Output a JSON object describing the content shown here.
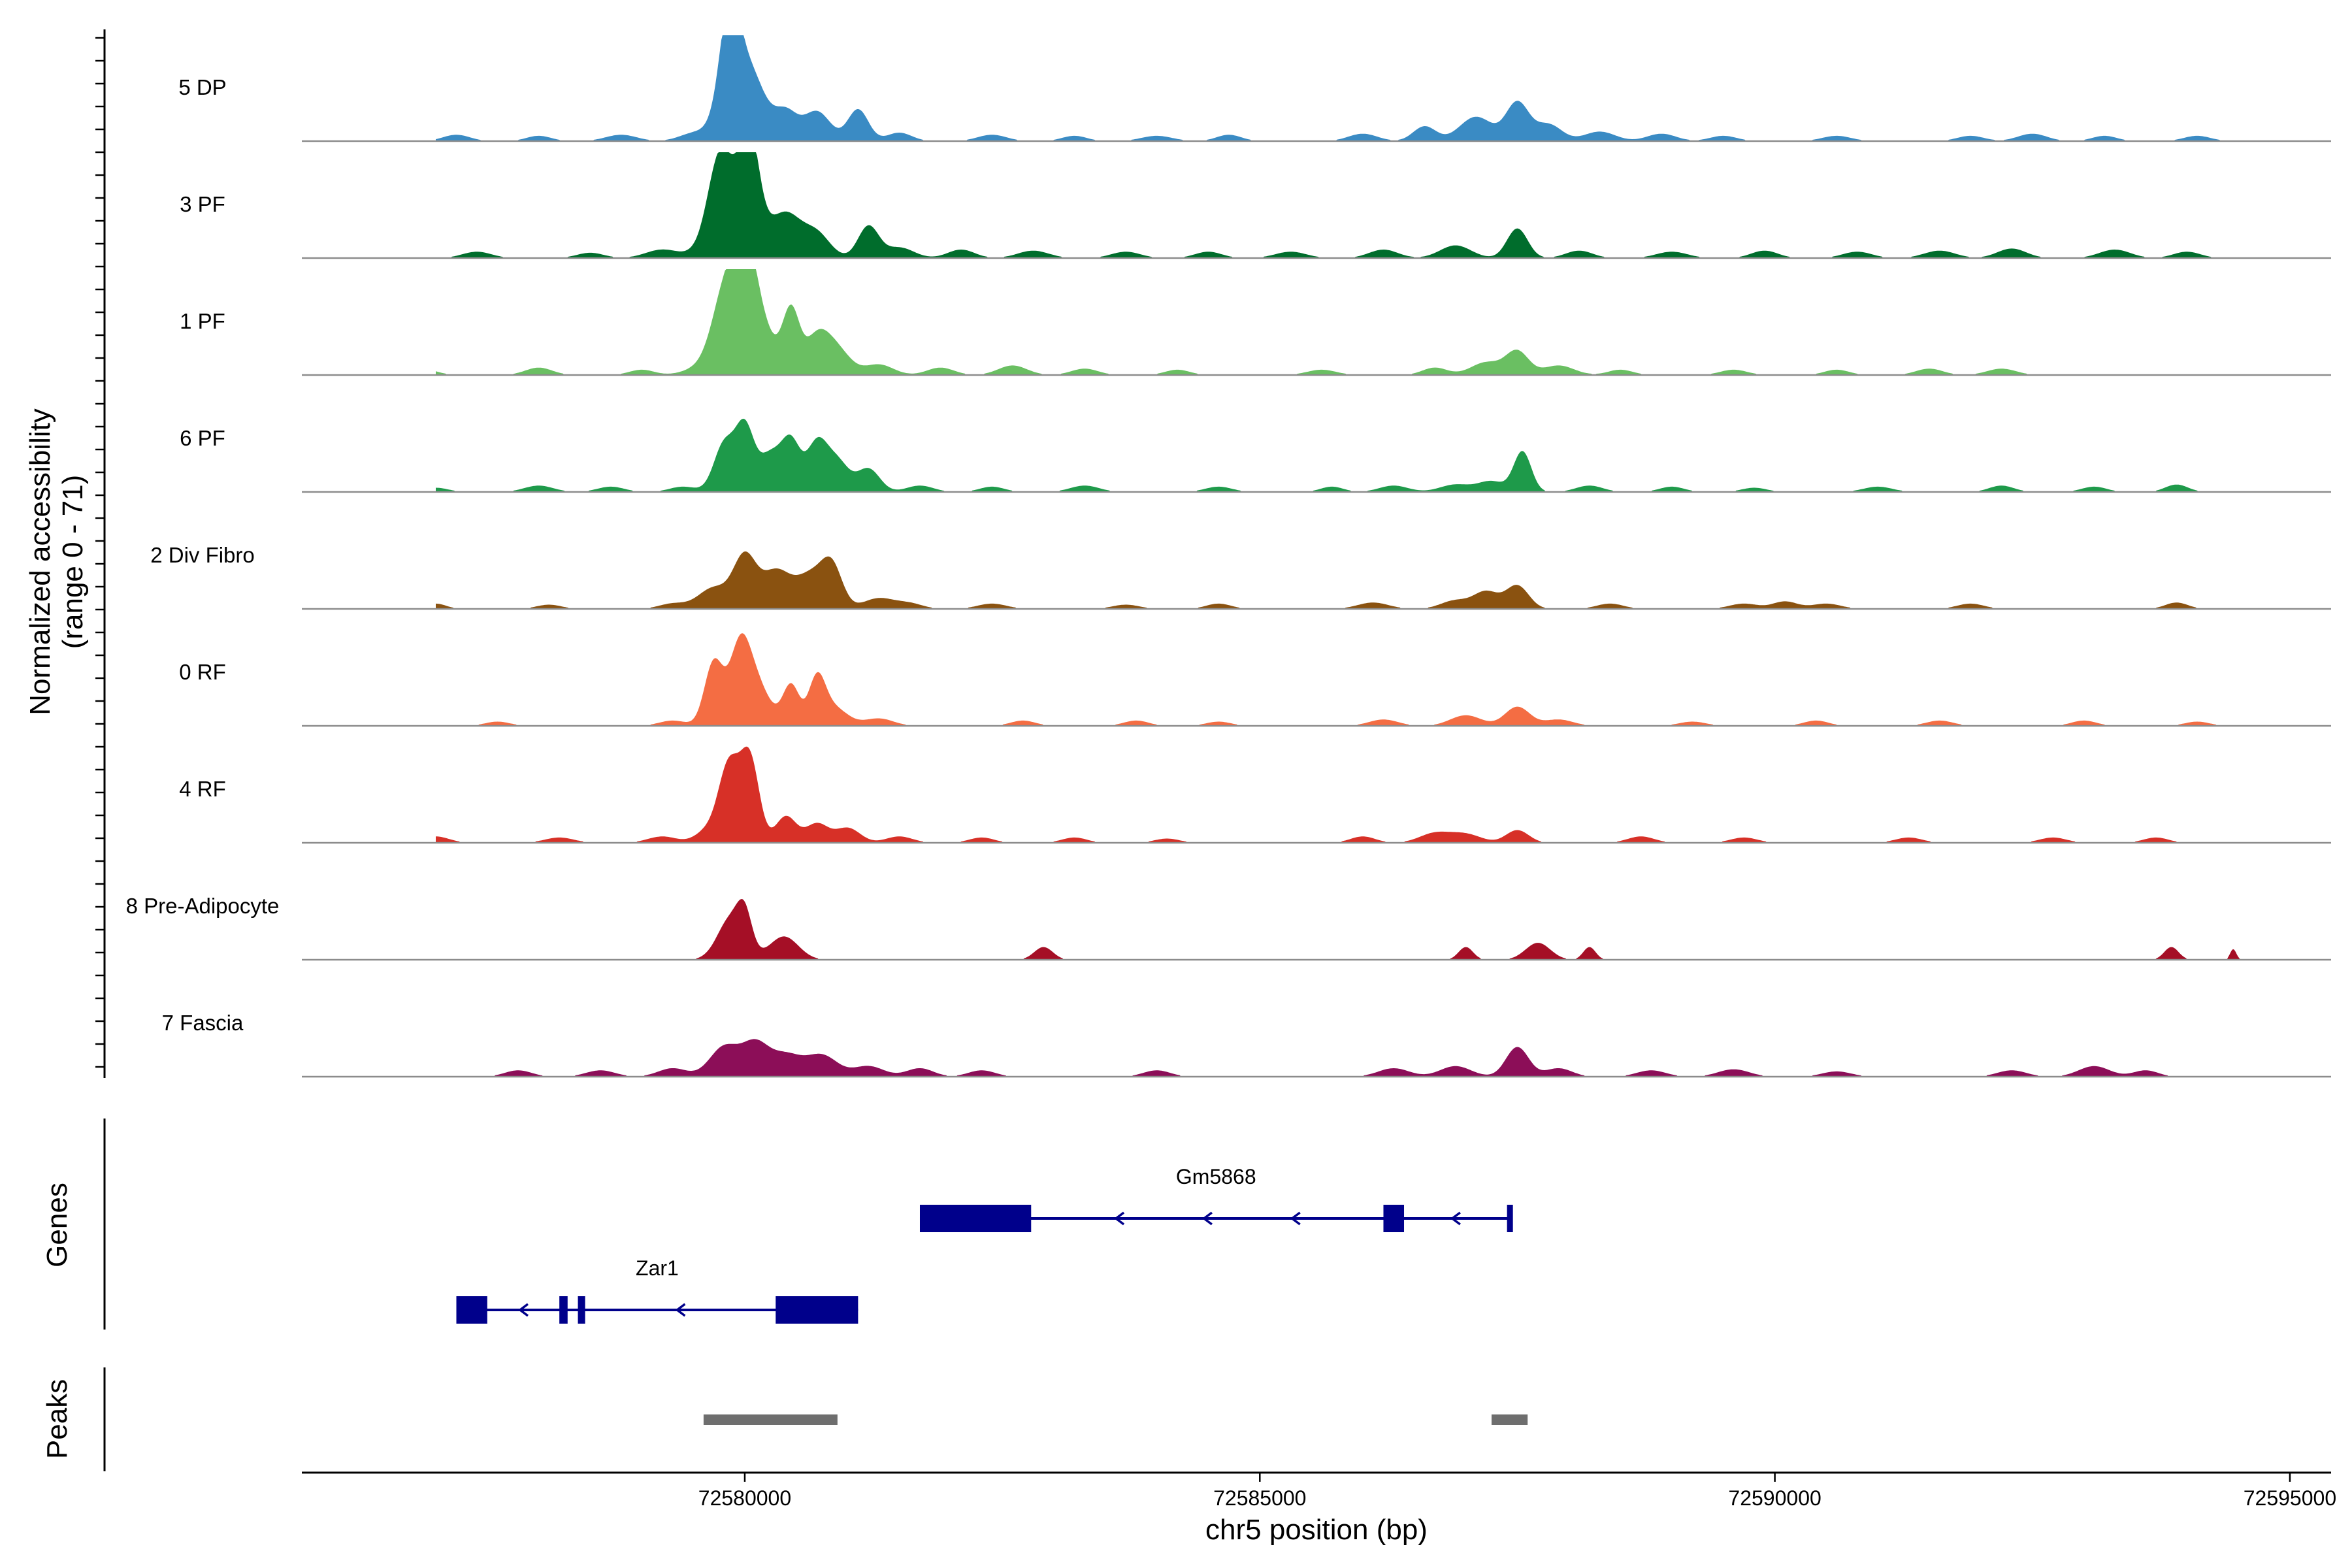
{
  "chart_data": {
    "type": "area",
    "title": "",
    "xlabel": "chr5 position (bp)",
    "ylabel": "Normalized accessibility",
    "ylabel_sub": "(range 0 - 71)",
    "xlim": [
      72575700,
      72595400
    ],
    "ylim": [
      0,
      71
    ],
    "x_ticks": [
      72580000,
      72585000,
      72590000,
      72595000
    ],
    "x_tick_labels": [
      "72580000",
      "72585000",
      "72590000",
      "72595000"
    ],
    "tracks": [
      {
        "name": "5 DP",
        "color": "#3a8bc4",
        "peaks": [
          [
            72577200,
            0.06,
            130
          ],
          [
            72578000,
            0.05,
            120
          ],
          [
            72578800,
            0.06,
            150
          ],
          [
            72579500,
            0.07,
            140
          ],
          [
            72579850,
            0.82,
            90
          ],
          [
            72579920,
            0.55,
            160
          ],
          [
            72580100,
            0.35,
            140
          ],
          [
            72580400,
            0.26,
            110
          ],
          [
            72580700,
            0.28,
            130
          ],
          [
            72581100,
            0.3,
            100
          ],
          [
            72581500,
            0.08,
            120
          ],
          [
            72582400,
            0.06,
            140
          ],
          [
            72583200,
            0.05,
            120
          ],
          [
            72584000,
            0.05,
            150
          ],
          [
            72584700,
            0.06,
            120
          ],
          [
            72586000,
            0.07,
            140
          ],
          [
            72586600,
            0.14,
            110
          ],
          [
            72587100,
            0.23,
            160
          ],
          [
            72587500,
            0.36,
            110
          ],
          [
            72587800,
            0.16,
            130
          ],
          [
            72588300,
            0.09,
            150
          ],
          [
            72588900,
            0.07,
            140
          ],
          [
            72589500,
            0.05,
            130
          ],
          [
            72590600,
            0.05,
            140
          ],
          [
            72591900,
            0.05,
            130
          ],
          [
            72592500,
            0.07,
            140
          ],
          [
            72593200,
            0.05,
            120
          ],
          [
            72594100,
            0.05,
            130
          ]
        ]
      },
      {
        "name": "3 PF",
        "color": "#006d2c",
        "peaks": [
          [
            72577400,
            0.06,
            140
          ],
          [
            72578500,
            0.05,
            130
          ],
          [
            72579200,
            0.08,
            160
          ],
          [
            72579750,
            0.6,
            110
          ],
          [
            72580050,
            0.8,
            90
          ],
          [
            72579900,
            0.55,
            200
          ],
          [
            72580400,
            0.4,
            150
          ],
          [
            72580700,
            0.22,
            130
          ],
          [
            72581200,
            0.3,
            100
          ],
          [
            72581500,
            0.1,
            140
          ],
          [
            72582100,
            0.08,
            130
          ],
          [
            72582800,
            0.07,
            150
          ],
          [
            72583700,
            0.06,
            140
          ],
          [
            72584500,
            0.06,
            130
          ],
          [
            72585300,
            0.06,
            150
          ],
          [
            72586200,
            0.08,
            140
          ],
          [
            72586900,
            0.12,
            150
          ],
          [
            72587500,
            0.28,
            100
          ],
          [
            72588100,
            0.07,
            130
          ],
          [
            72589000,
            0.06,
            150
          ],
          [
            72589900,
            0.07,
            130
          ],
          [
            72590800,
            0.06,
            140
          ],
          [
            72591600,
            0.07,
            150
          ],
          [
            72592300,
            0.09,
            140
          ],
          [
            72593300,
            0.08,
            150
          ],
          [
            72594000,
            0.06,
            130
          ]
        ]
      },
      {
        "name": "1 PF",
        "color": "#6abf62",
        "peaks": [
          [
            72576900,
            0.05,
            120
          ],
          [
            72578000,
            0.07,
            130
          ],
          [
            72579000,
            0.05,
            120
          ],
          [
            72579600,
            0.08,
            160
          ],
          [
            72579800,
            0.65,
            120
          ],
          [
            72580000,
            0.78,
            110
          ],
          [
            72580100,
            0.5,
            180
          ],
          [
            72580450,
            0.55,
            80
          ],
          [
            72580700,
            0.35,
            120
          ],
          [
            72580900,
            0.22,
            130
          ],
          [
            72581300,
            0.1,
            140
          ],
          [
            72581900,
            0.07,
            130
          ],
          [
            72582600,
            0.09,
            140
          ],
          [
            72583300,
            0.06,
            130
          ],
          [
            72584200,
            0.05,
            120
          ],
          [
            72585600,
            0.05,
            140
          ],
          [
            72586700,
            0.07,
            120
          ],
          [
            72587200,
            0.12,
            150
          ],
          [
            72587500,
            0.22,
            110
          ],
          [
            72587900,
            0.09,
            150
          ],
          [
            72588500,
            0.05,
            120
          ],
          [
            72589600,
            0.05,
            130
          ],
          [
            72590600,
            0.05,
            120
          ],
          [
            72591500,
            0.06,
            130
          ],
          [
            72592200,
            0.06,
            140
          ]
        ]
      },
      {
        "name": "6 PF",
        "color": "#1e9a4a",
        "peaks": [
          [
            72577000,
            0.04,
            120
          ],
          [
            72578000,
            0.06,
            140
          ],
          [
            72578700,
            0.05,
            130
          ],
          [
            72579400,
            0.05,
            130
          ],
          [
            72579800,
            0.45,
            100
          ],
          [
            72580000,
            0.6,
            90
          ],
          [
            72580250,
            0.35,
            110
          ],
          [
            72580450,
            0.45,
            90
          ],
          [
            72580700,
            0.45,
            100
          ],
          [
            72580900,
            0.28,
            110
          ],
          [
            72581200,
            0.22,
            110
          ],
          [
            72581700,
            0.06,
            130
          ],
          [
            72582400,
            0.05,
            120
          ],
          [
            72583300,
            0.06,
            140
          ],
          [
            72584600,
            0.05,
            130
          ],
          [
            72585700,
            0.05,
            110
          ],
          [
            72586300,
            0.06,
            140
          ],
          [
            72586900,
            0.07,
            150
          ],
          [
            72587250,
            0.1,
            130
          ],
          [
            72587550,
            0.38,
            85
          ],
          [
            72588200,
            0.06,
            130
          ],
          [
            72589000,
            0.05,
            120
          ],
          [
            72589800,
            0.04,
            120
          ],
          [
            72591000,
            0.05,
            140
          ],
          [
            72592200,
            0.06,
            120
          ],
          [
            72593100,
            0.05,
            120
          ],
          [
            72593900,
            0.07,
            110
          ]
        ]
      },
      {
        "name": "2 Div Fibro",
        "color": "#8a5210",
        "peaks": [
          [
            72577000,
            0.05,
            100
          ],
          [
            72578100,
            0.04,
            120
          ],
          [
            72579300,
            0.05,
            130
          ],
          [
            72579700,
            0.2,
            150
          ],
          [
            72580000,
            0.48,
            110
          ],
          [
            72580300,
            0.35,
            140
          ],
          [
            72580650,
            0.32,
            150
          ],
          [
            72580850,
            0.34,
            100
          ],
          [
            72581300,
            0.1,
            150
          ],
          [
            72581600,
            0.05,
            130
          ],
          [
            72582400,
            0.05,
            140
          ],
          [
            72583700,
            0.04,
            130
          ],
          [
            72584600,
            0.05,
            120
          ],
          [
            72586100,
            0.06,
            150
          ],
          [
            72586900,
            0.08,
            140
          ],
          [
            72587200,
            0.16,
            120
          ],
          [
            72587500,
            0.22,
            110
          ],
          [
            72588400,
            0.05,
            130
          ],
          [
            72589700,
            0.05,
            140
          ],
          [
            72590100,
            0.07,
            120
          ],
          [
            72590500,
            0.05,
            140
          ],
          [
            72591900,
            0.05,
            130
          ],
          [
            72593900,
            0.06,
            110
          ]
        ]
      },
      {
        "name": "0 RF",
        "color": "#f46d43",
        "peaks": [
          [
            72577600,
            0.04,
            120
          ],
          [
            72579300,
            0.05,
            130
          ],
          [
            72579700,
            0.6,
            90
          ],
          [
            72579950,
            0.62,
            100
          ],
          [
            72580100,
            0.4,
            140
          ],
          [
            72580450,
            0.38,
            80
          ],
          [
            72580700,
            0.4,
            80
          ],
          [
            72580850,
            0.18,
            140
          ],
          [
            72581300,
            0.07,
            140
          ],
          [
            72582700,
            0.05,
            120
          ],
          [
            72583800,
            0.05,
            120
          ],
          [
            72584600,
            0.04,
            120
          ],
          [
            72586200,
            0.06,
            140
          ],
          [
            72587000,
            0.1,
            150
          ],
          [
            72587500,
            0.18,
            120
          ],
          [
            72587900,
            0.06,
            140
          ],
          [
            72589200,
            0.04,
            130
          ],
          [
            72590400,
            0.05,
            120
          ],
          [
            72591600,
            0.05,
            130
          ],
          [
            72593000,
            0.05,
            120
          ],
          [
            72594100,
            0.04,
            120
          ]
        ]
      },
      {
        "name": "4 RF",
        "color": "#d73027",
        "peaks": [
          [
            72577000,
            0.06,
            130
          ],
          [
            72578200,
            0.05,
            140
          ],
          [
            72579200,
            0.06,
            140
          ],
          [
            72579650,
            0.12,
            120
          ],
          [
            72579850,
            0.72,
            100
          ],
          [
            72580050,
            0.78,
            90
          ],
          [
            72580400,
            0.25,
            100
          ],
          [
            72580700,
            0.18,
            110
          ],
          [
            72581000,
            0.14,
            120
          ],
          [
            72581500,
            0.06,
            130
          ],
          [
            72582300,
            0.05,
            120
          ],
          [
            72583200,
            0.05,
            120
          ],
          [
            72584100,
            0.04,
            120
          ],
          [
            72586000,
            0.06,
            120
          ],
          [
            72586700,
            0.09,
            150
          ],
          [
            72587000,
            0.08,
            150
          ],
          [
            72587500,
            0.12,
            110
          ],
          [
            72588700,
            0.06,
            130
          ],
          [
            72589700,
            0.05,
            130
          ],
          [
            72591300,
            0.05,
            130
          ],
          [
            72592700,
            0.05,
            130
          ],
          [
            72593700,
            0.05,
            120
          ]
        ]
      },
      {
        "name": "8 Pre-Adipocyte",
        "color": "#a50f26",
        "peaks": [
          [
            72579870,
            0.4,
            130
          ],
          [
            72580000,
            0.3,
            70
          ],
          [
            72580380,
            0.22,
            140
          ],
          [
            72582900,
            0.12,
            90
          ],
          [
            72587000,
            0.12,
            70
          ],
          [
            72587700,
            0.16,
            120
          ],
          [
            72588200,
            0.12,
            60
          ],
          [
            72593850,
            0.12,
            70
          ],
          [
            72594450,
            0.1,
            30
          ]
        ]
      },
      {
        "name": "7 Fascia",
        "color": "#8c0e58",
        "peaks": [
          [
            72577800,
            0.06,
            130
          ],
          [
            72578600,
            0.06,
            140
          ],
          [
            72579300,
            0.08,
            140
          ],
          [
            72579800,
            0.28,
            140
          ],
          [
            72580100,
            0.3,
            130
          ],
          [
            72580400,
            0.2,
            150
          ],
          [
            72580750,
            0.2,
            150
          ],
          [
            72581200,
            0.1,
            150
          ],
          [
            72581700,
            0.08,
            130
          ],
          [
            72582300,
            0.06,
            130
          ],
          [
            72584000,
            0.06,
            130
          ],
          [
            72586300,
            0.08,
            150
          ],
          [
            72586900,
            0.1,
            150
          ],
          [
            72587500,
            0.28,
            110
          ],
          [
            72587900,
            0.08,
            130
          ],
          [
            72588800,
            0.06,
            140
          ],
          [
            72589600,
            0.07,
            150
          ],
          [
            72590600,
            0.05,
            140
          ],
          [
            72592300,
            0.06,
            140
          ],
          [
            72593100,
            0.1,
            150
          ],
          [
            72593600,
            0.06,
            120
          ]
        ]
      }
    ],
    "genes": [
      {
        "name": "Gm5868",
        "strand": "-",
        "start": 72581700,
        "end": 72587450,
        "exons": [
          [
            72581700,
            72582780
          ],
          [
            72586200,
            72586400
          ],
          [
            72587400,
            72587450
          ]
        ]
      },
      {
        "name": "Zar1",
        "strand": "-",
        "start": 72577200,
        "end": 72581100,
        "exons": [
          [
            72577200,
            72577500
          ],
          [
            72578200,
            72578280
          ],
          [
            72578380,
            72578450
          ],
          [
            72580300,
            72581100
          ]
        ]
      }
    ],
    "peaks_track": [
      [
        72579600,
        72580900
      ],
      [
        72587250,
        72587600
      ]
    ],
    "track_group_labels": {
      "genes": "Genes",
      "peaks": "Peaks"
    }
  }
}
